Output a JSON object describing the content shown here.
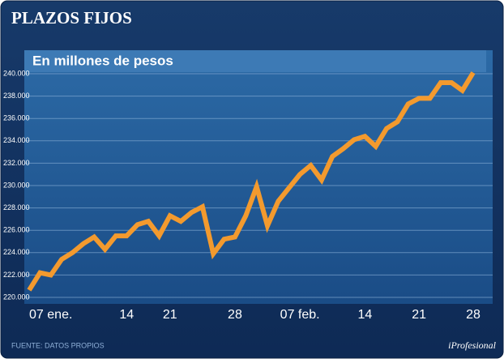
{
  "chart_data": {
    "type": "line",
    "title": "PLAZOS FIJOS",
    "subtitle": "En millones de pesos",
    "source": "FUENTE: DATOS PROPIOS",
    "brand": "iProfesional",
    "categories": [
      null,
      null,
      "07 ene.",
      null,
      null,
      null,
      null,
      null,
      null,
      "14",
      null,
      null,
      null,
      "21",
      null,
      null,
      null,
      null,
      null,
      "28",
      null,
      null,
      null,
      null,
      null,
      "07 feb.",
      null,
      null,
      null,
      null,
      null,
      "14",
      null,
      null,
      null,
      null,
      "21",
      null,
      null,
      null,
      null,
      "28"
    ],
    "series": [
      {
        "name": "Plazos fijos",
        "color": "#f39a2e",
        "values": [
          220650,
          222200,
          222000,
          223400,
          224000,
          224800,
          225400,
          224300,
          225500,
          225500,
          226500,
          226800,
          225500,
          227300,
          226800,
          227600,
          228100,
          223900,
          225200,
          225400,
          227300,
          229900,
          226400,
          228600,
          229800,
          231000,
          231800,
          230500,
          232600,
          233300,
          234100,
          234400,
          233500,
          235100,
          235700,
          237300,
          237800,
          237800,
          239200,
          239200,
          238500,
          240100
        ]
      }
    ],
    "ylim": [
      220000,
      240000
    ],
    "yticks": [
      {
        "value": 220000,
        "label": "220.000"
      },
      {
        "value": 222000,
        "label": "222.000"
      },
      {
        "value": 224000,
        "label": "224.000"
      },
      {
        "value": 226000,
        "label": "226.000"
      },
      {
        "value": 228000,
        "label": "228.000"
      },
      {
        "value": 230000,
        "label": "230.000"
      },
      {
        "value": 232000,
        "label": "232.000"
      },
      {
        "value": 234000,
        "label": "234.000"
      },
      {
        "value": 236000,
        "label": "236.000"
      },
      {
        "value": 238000,
        "label": "238.000"
      },
      {
        "value": 240000,
        "label": "240.000"
      }
    ],
    "grid": true
  }
}
